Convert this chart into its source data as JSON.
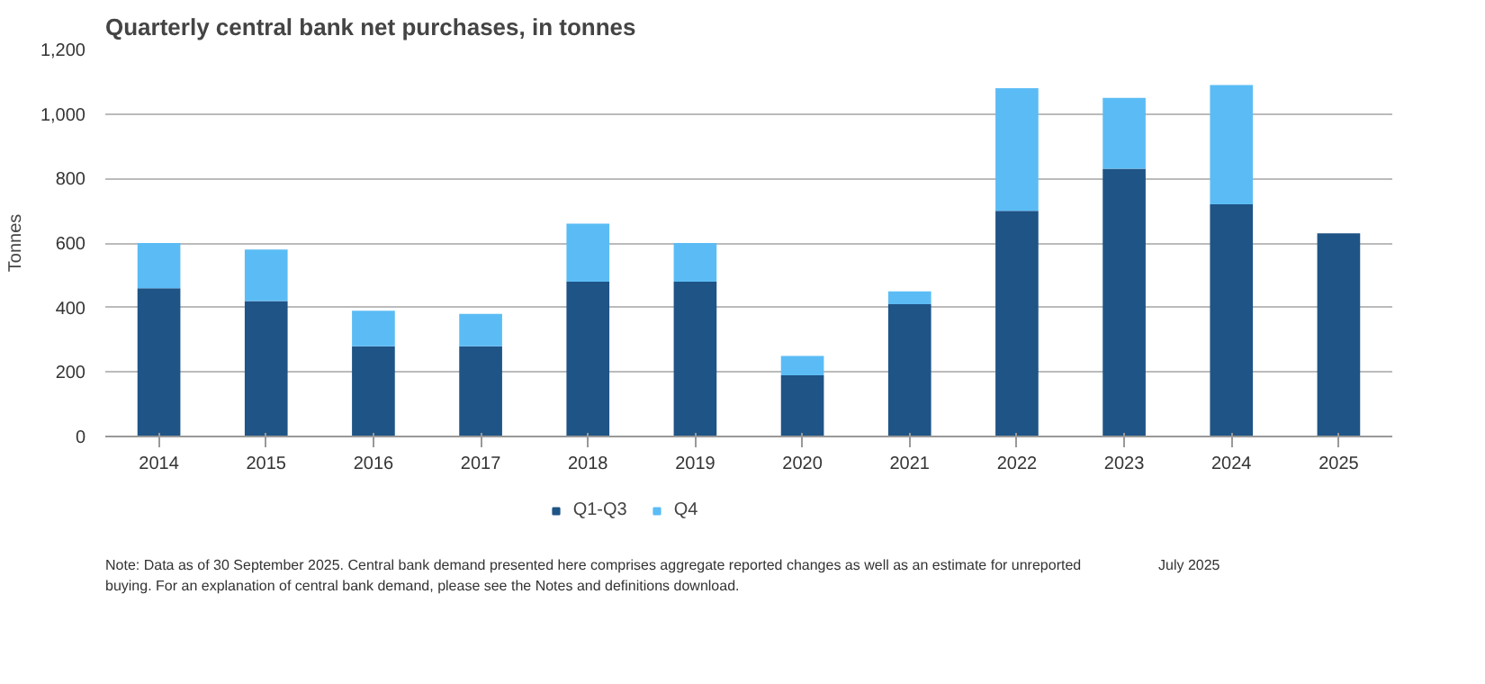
{
  "chart_data": {
    "type": "bar",
    "title": "Quarterly central bank net purchases, in tonnes",
    "ylabel": "Tonnes",
    "stacked": true,
    "categories": [
      "2014",
      "2015",
      "2016",
      "2017",
      "2018",
      "2019",
      "2020",
      "2021",
      "2022",
      "2023",
      "2024",
      "2025"
    ],
    "series": [
      {
        "name": "Q1-Q3",
        "color": "#1f5486",
        "values": [
          460,
          420,
          280,
          280,
          480,
          480,
          190,
          410,
          700,
          830,
          720,
          630
        ]
      },
      {
        "name": "Q4",
        "color": "#5bbcf5",
        "values": [
          140,
          160,
          110,
          100,
          180,
          120,
          60,
          40,
          380,
          220,
          370,
          null
        ]
      }
    ],
    "ylim": [
      0,
      1200
    ],
    "yticks": [
      0,
      200,
      400,
      600,
      800,
      {
        "value": 1000,
        "label": "1,000"
      },
      {
        "value": 1200,
        "label": "1,200"
      }
    ],
    "grid": "y",
    "legend": "bottom",
    "annotations": [
      "Note: Data as of 30 September 2025. Central bank demand presented here comprises aggregate reported changes as well as an estimate for unreported buying. For an explanation of central bank demand, please see the Notes and definitions download.",
      "July 2025"
    ]
  }
}
